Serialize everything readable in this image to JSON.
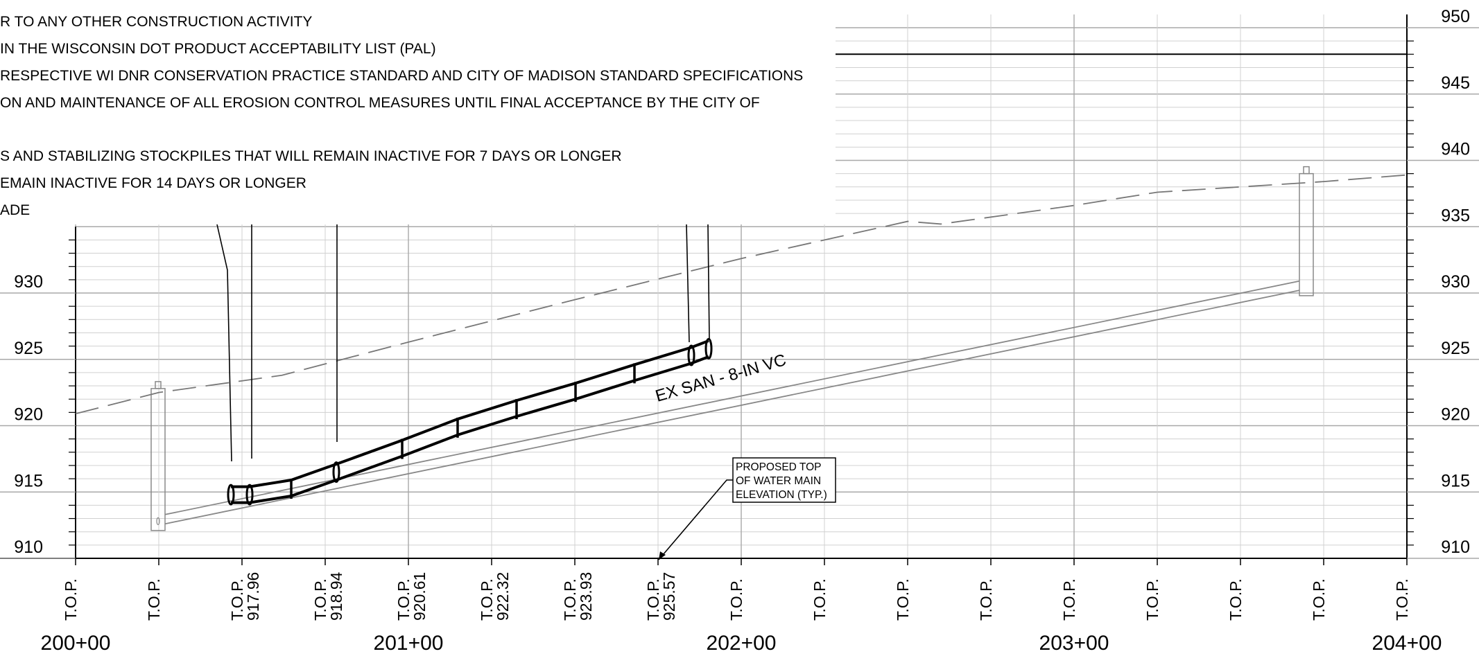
{
  "notes": [
    "R TO ANY OTHER CONSTRUCTION ACTIVITY",
    "IN THE WISCONSIN DOT PRODUCT ACCEPTABILITY LIST (PAL)",
    "RESPECTIVE WI DNR CONSERVATION PRACTICE STANDARD AND CITY OF MADISON STANDARD SPECIFICATIONS",
    "ON AND MAINTENANCE OF ALL EROSION CONTROL MEASURES UNTIL FINAL ACCEPTANCE BY THE CITY OF",
    "",
    "S AND STABILIZING STOCKPILES THAT WILL REMAIN INACTIVE FOR 7 DAYS OR LONGER",
    "EMAIN INACTIVE FOR 14 DAYS OR LONGER",
    "ADE"
  ],
  "elevation_labels_right": [
    "950",
    "945",
    "940",
    "935",
    "930",
    "925",
    "920",
    "915",
    "910"
  ],
  "elevation_labels_left": [
    "930",
    "925",
    "920",
    "915",
    "910"
  ],
  "stations": [
    "200+00",
    "201+00",
    "202+00",
    "203+00",
    "204+00"
  ],
  "top_label": "T.O.P.",
  "top_values": [
    "",
    "",
    "917.96",
    "918.94",
    "920.61",
    "922.32",
    "923.93",
    "925.57",
    "",
    "",
    "",
    "",
    "",
    "",
    "",
    "",
    ""
  ],
  "pipe_label": "EX SAN - 8-IN VC",
  "callout_lines": [
    "PROPOSED TOP",
    "OF WATER MAIN",
    "ELEVATION (TYP.)"
  ],
  "colors": {
    "ink": "#000000",
    "grid_minor": "#d0d0d0",
    "grid_major": "#a8a8a8",
    "existing": "#888888",
    "ground": "#777777"
  }
}
